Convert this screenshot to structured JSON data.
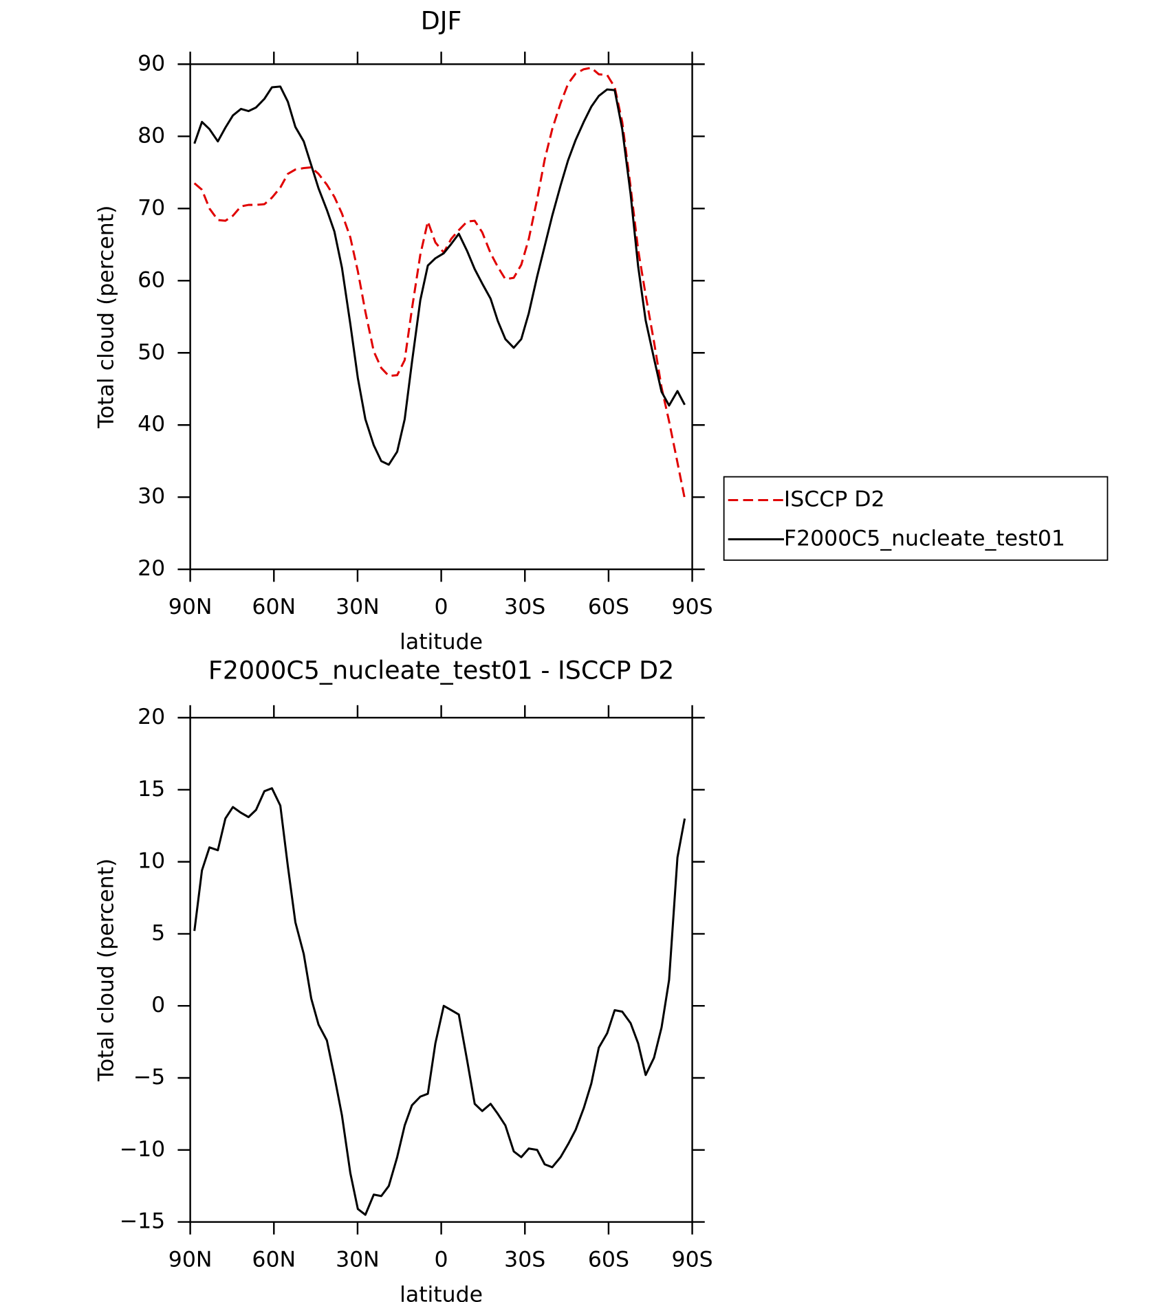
{
  "chart_data": [
    {
      "type": "line",
      "title": "DJF",
      "xlabel": "latitude",
      "ylabel": "Total cloud (percent)",
      "x": [
        88.5,
        85.8,
        83.1,
        80.1,
        77.4,
        74.7,
        71.8,
        69.1,
        66.4,
        63.4,
        60.7,
        57.7,
        55,
        52.3,
        49.3,
        46.6,
        44,
        41,
        38.3,
        35.6,
        32.6,
        29.9,
        27.2,
        24.2,
        21.5,
        18.8,
        15.8,
        13.1,
        10.5,
        7.5,
        4.8,
        2.1,
        -0.9,
        -3.6,
        -6.3,
        -9.3,
        -12,
        -14.7,
        -17.7,
        -20.3,
        -23,
        -26,
        -28.7,
        -31.4,
        -34.4,
        -37.1,
        -39.8,
        -42.8,
        -45.5,
        -48.2,
        -51.1,
        -53.8,
        -56.5,
        -59.5,
        -62.2,
        -64.9,
        -67.9,
        -70.6,
        -73.3,
        -76.3,
        -79,
        -81.7,
        -84.7,
        -87.3
      ],
      "xlim": [
        90,
        -90
      ],
      "xticks": [
        {
          "value": 90,
          "label": "90N"
        },
        {
          "value": 60,
          "label": "60N"
        },
        {
          "value": 30,
          "label": "30N"
        },
        0,
        {
          "value": -30,
          "label": "30S"
        },
        {
          "value": -60,
          "label": "60S"
        },
        {
          "value": -90,
          "label": "90S"
        }
      ],
      "ylim": [
        20,
        90
      ],
      "yticks": [
        20,
        30,
        40,
        50,
        60,
        70,
        80,
        90
      ],
      "legend": "right",
      "series": [
        {
          "name": "ISCCP D2",
          "color": "#e00000",
          "dash": true,
          "values": [
            73.5,
            72.6,
            70,
            68.4,
            68.3,
            69,
            70.3,
            70.5,
            70.5,
            70.6,
            71.5,
            72.9,
            74.8,
            75.4,
            75.6,
            75.7,
            74.8,
            73.3,
            71.6,
            69.3,
            66,
            61.3,
            55.7,
            50.2,
            47.9,
            46.8,
            46.9,
            49,
            56.1,
            63.6,
            68.2,
            65.3,
            63.9,
            65.8,
            67,
            68.2,
            68.3,
            66.7,
            63.8,
            61.9,
            60.2,
            60.4,
            62.2,
            65.8,
            71.3,
            76.8,
            81,
            84.6,
            87.3,
            88.7,
            89.3,
            89.5,
            88.6,
            88.5,
            86.8,
            82,
            73,
            64.3,
            58,
            51.5,
            45.2,
            40.5,
            34.8,
            29.8
          ]
        },
        {
          "name": "F2000C5_nucleate_test01",
          "color": "#000000",
          "dash": false,
          "values": [
            79,
            82,
            81,
            79.3,
            81.2,
            82.9,
            83.8,
            83.5,
            84,
            85.2,
            86.8,
            86.9,
            84.8,
            81.3,
            79.3,
            76,
            72.8,
            69.8,
            66.8,
            61.8,
            54,
            46.5,
            40.8,
            37.2,
            35,
            34.5,
            36.3,
            40.8,
            48.7,
            57.3,
            62.1,
            63.1,
            63.8,
            65.1,
            66.5,
            64.1,
            61.6,
            59.6,
            57.5,
            54.4,
            51.9,
            50.7,
            51.9,
            55.5,
            60.6,
            64.8,
            69,
            73.2,
            76.7,
            79.5,
            82,
            84.1,
            85.6,
            86.5,
            86.4,
            81,
            72,
            62,
            54.5,
            49.2,
            44.6,
            42.7,
            44.7,
            42.8
          ]
        }
      ]
    },
    {
      "type": "line",
      "title": "F2000C5_nucleate_test01 - ISCCP D2",
      "xlabel": "latitude",
      "ylabel": "Total cloud (percent)",
      "x": [
        88.5,
        85.8,
        83.1,
        80.1,
        77.4,
        74.7,
        71.8,
        69.1,
        66.4,
        63.4,
        60.7,
        57.7,
        55,
        52.3,
        49.3,
        46.6,
        44,
        41,
        38.3,
        35.6,
        32.6,
        29.9,
        27.2,
        24.2,
        21.5,
        18.8,
        15.8,
        13.1,
        10.5,
        7.5,
        4.8,
        2.1,
        -0.9,
        -3.6,
        -6.3,
        -9.3,
        -12,
        -14.7,
        -17.7,
        -20.3,
        -23,
        -26,
        -28.7,
        -31.4,
        -34.4,
        -37.1,
        -39.8,
        -42.8,
        -45.5,
        -48.2,
        -51.1,
        -53.8,
        -56.5,
        -59.5,
        -62.2,
        -64.9,
        -67.9,
        -70.6,
        -73.3,
        -76.3,
        -79,
        -81.7,
        -84.7,
        -87.3
      ],
      "xlim": [
        90,
        -90
      ],
      "xticks": [
        {
          "value": 90,
          "label": "90N"
        },
        {
          "value": 60,
          "label": "60N"
        },
        {
          "value": 30,
          "label": "30N"
        },
        0,
        {
          "value": -30,
          "label": "30S"
        },
        {
          "value": -60,
          "label": "60S"
        },
        {
          "value": -90,
          "label": "90S"
        }
      ],
      "ylim": [
        -15,
        20
      ],
      "yticks": [
        {
          "value": -15,
          "label": "−15"
        },
        {
          "value": -10,
          "label": "−10"
        },
        {
          "value": -5,
          "label": "−5"
        },
        0,
        5,
        10,
        15,
        20
      ],
      "series": [
        {
          "color": "#000000",
          "dash": false,
          "values": [
            5.2,
            9.4,
            11,
            10.8,
            13,
            13.8,
            13.4,
            13.1,
            13.6,
            14.9,
            15.1,
            13.9,
            9.7,
            5.8,
            3.6,
            0.5,
            -1.3,
            -2.4,
            -4.9,
            -7.6,
            -11.6,
            -14.1,
            -14.5,
            -13.1,
            -13.2,
            -12.5,
            -10.5,
            -8.3,
            -6.9,
            -6.3,
            -6.1,
            -2.6,
            0,
            -0.3,
            -0.6,
            -3.8,
            -6.8,
            -7.3,
            -6.8,
            -7.5,
            -8.3,
            -10.1,
            -10.5,
            -9.9,
            -10,
            -11,
            -11.2,
            -10.5,
            -9.6,
            -8.6,
            -7.1,
            -5.4,
            -2.9,
            -1.9,
            -0.3,
            -0.4,
            -1.2,
            -2.6,
            -4.8,
            -3.6,
            -1.5,
            1.8,
            10.3,
            13
          ]
        }
      ]
    }
  ]
}
